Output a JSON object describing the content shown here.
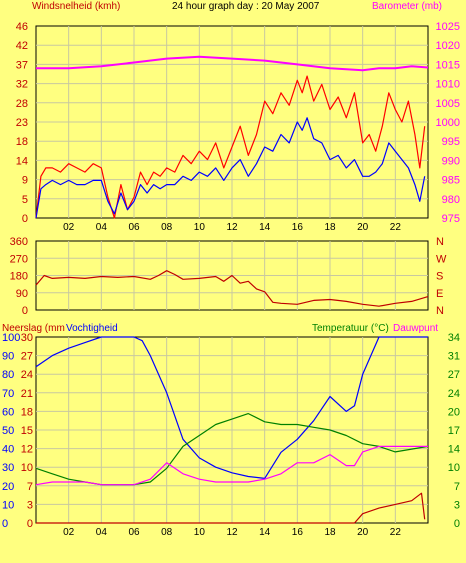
{
  "colors": {
    "background": "#ffff80",
    "wind_avg": "#0000ff",
    "wind_gust": "#ff0000",
    "barometer": "#ff00ff",
    "direction": "#c00000",
    "rain": "#c00000",
    "humidity": "#0000ff",
    "temperature": "#008000",
    "dewpoint": "#ff00ff",
    "grid": "#c8c8a0"
  },
  "header": {
    "left_label": "Windsnelheid (kmh)",
    "title": "24 hour graph day : 20 May 2007",
    "right_label": "Barometer (mb)"
  },
  "panel3": {
    "left_label": "Neerslag (mm",
    "left_label2": "Vochtigheid",
    "right_label": "Temperatuur (°C)",
    "right_label2": "Dauwpunt"
  },
  "x_ticks": [
    "02",
    "04",
    "06",
    "08",
    "10",
    "12",
    "14",
    "16",
    "18",
    "20",
    "22"
  ],
  "chart_data": [
    {
      "type": "line",
      "name": "wind_and_barometer",
      "x_unit": "hour",
      "xlim": [
        0,
        24
      ],
      "ylabel": "Windsnelheid (kmh)",
      "y2label": "Barometer (mb)",
      "ylim": [
        0,
        46
      ],
      "y_ticks": [
        "46",
        "42",
        "37",
        "32",
        "28",
        "23",
        "18",
        "14",
        "9",
        "5",
        "0"
      ],
      "y2lim": [
        975,
        1025
      ],
      "y2_ticks": [
        "1025",
        "1020",
        "1015",
        "1010",
        "1005",
        "1000",
        "995",
        "990",
        "985",
        "980",
        "975"
      ],
      "series": [
        {
          "key": "gust",
          "axis": "left",
          "color": "#ff0000",
          "x": [
            0,
            0.3,
            0.6,
            1,
            1.5,
            2,
            2.5,
            3,
            3.5,
            4,
            4.4,
            4.8,
            5.2,
            5.6,
            6,
            6.4,
            6.8,
            7.2,
            7.6,
            8,
            8.5,
            9,
            9.5,
            10,
            10.5,
            11,
            11.5,
            12,
            12.5,
            13,
            13.5,
            14,
            14.5,
            15,
            15.5,
            16,
            16.3,
            16.6,
            17,
            17.5,
            18,
            18.5,
            19,
            19.5,
            20,
            20.4,
            20.8,
            21.2,
            21.6,
            22,
            22.4,
            22.8,
            23.2,
            23.5,
            23.8
          ],
          "y": [
            0,
            10,
            12,
            12,
            11,
            13,
            12,
            11,
            13,
            12,
            5,
            0,
            8,
            2,
            5,
            11,
            8,
            11,
            10,
            12,
            11,
            15,
            13,
            16,
            14,
            18,
            12,
            17,
            22,
            15,
            20,
            28,
            25,
            30,
            27,
            33,
            30,
            34,
            28,
            32,
            26,
            29,
            24,
            30,
            18,
            20,
            16,
            22,
            30,
            26,
            23,
            28,
            20,
            12,
            22
          ]
        },
        {
          "key": "avg",
          "axis": "left",
          "color": "#0000ff",
          "x": [
            0,
            0.3,
            0.6,
            1,
            1.5,
            2,
            2.5,
            3,
            3.5,
            4,
            4.4,
            4.8,
            5.2,
            5.6,
            6,
            6.4,
            6.8,
            7.2,
            7.6,
            8,
            8.5,
            9,
            9.5,
            10,
            10.5,
            11,
            11.5,
            12,
            12.5,
            13,
            13.5,
            14,
            14.5,
            15,
            15.5,
            16,
            16.3,
            16.6,
            17,
            17.5,
            18,
            18.5,
            19,
            19.5,
            20,
            20.4,
            20.8,
            21.2,
            21.6,
            22,
            22.4,
            22.8,
            23.2,
            23.5,
            23.8
          ],
          "y": [
            0,
            7,
            8,
            9,
            8,
            9,
            8,
            8,
            9,
            9,
            4,
            1,
            6,
            2,
            4,
            8,
            6,
            8,
            7,
            8,
            8,
            10,
            9,
            11,
            10,
            12,
            9,
            12,
            14,
            10,
            13,
            17,
            16,
            20,
            18,
            23,
            21,
            24,
            19,
            18,
            14,
            15,
            12,
            14,
            10,
            10,
            11,
            13,
            18,
            16,
            14,
            12,
            8,
            4,
            10
          ]
        },
        {
          "key": "barometer",
          "axis": "right",
          "color": "#ff00ff",
          "x": [
            0,
            2,
            4,
            6,
            8,
            10,
            12,
            14,
            16,
            18,
            20,
            21,
            22,
            23,
            24
          ],
          "y": [
            1014,
            1014,
            1014.5,
            1015.5,
            1016.5,
            1017,
            1016.5,
            1016,
            1015,
            1014,
            1013.5,
            1014,
            1014,
            1014.5,
            1014.2
          ]
        }
      ]
    },
    {
      "type": "line",
      "name": "wind_direction",
      "xlim": [
        0,
        24
      ],
      "ylim": [
        0,
        360
      ],
      "y_ticks": [
        "360",
        "270",
        "180",
        "90",
        "0"
      ],
      "y2_ticks": [
        "N",
        "W",
        "S",
        "E",
        "N"
      ],
      "series": [
        {
          "key": "direction",
          "color": "#c00000",
          "x": [
            0,
            0.5,
            1,
            2,
            3,
            4,
            5,
            6,
            7,
            7.5,
            8,
            8.5,
            9,
            10,
            11,
            11.5,
            12,
            12.5,
            13,
            13.5,
            14,
            14.5,
            15,
            16,
            17,
            18,
            19,
            20,
            21,
            22,
            23,
            24
          ],
          "y": [
            130,
            180,
            165,
            170,
            165,
            175,
            170,
            175,
            160,
            180,
            205,
            185,
            160,
            165,
            175,
            150,
            180,
            140,
            150,
            110,
            95,
            40,
            35,
            30,
            50,
            55,
            45,
            30,
            20,
            35,
            45,
            70
          ]
        }
      ]
    },
    {
      "type": "line",
      "name": "rain_humidity_temperature",
      "xlim": [
        0,
        24
      ],
      "ylabel": "Neerslag (mm Vochtigheid",
      "y2label": "Temperatuur (°C) Dauwpunt",
      "ylim": [
        0,
        100
      ],
      "y_ticks": [
        "100",
        "90",
        "80",
        "70",
        "60",
        "50",
        "40",
        "30",
        "20",
        "10",
        "0"
      ],
      "y_ticks_left2": [
        "30",
        "27",
        "24",
        "21",
        "18",
        "15",
        "12",
        "10",
        "7",
        "3",
        "0"
      ],
      "y2lim": [
        0,
        34
      ],
      "y2_ticks": [
        "34",
        "31",
        "27",
        "24",
        "20",
        "17",
        "14",
        "10",
        "7",
        "3",
        "0"
      ],
      "series": [
        {
          "key": "humidity",
          "axis": "left",
          "color": "#0000ff",
          "x": [
            0,
            1,
            2,
            3,
            4,
            5,
            6,
            6.5,
            7,
            8,
            9,
            10,
            11,
            12,
            13,
            14,
            15,
            16,
            17,
            18,
            19,
            19.5,
            20,
            21,
            22,
            23,
            24
          ],
          "y": [
            84,
            90,
            94,
            97,
            100,
            100,
            100,
            98,
            90,
            70,
            45,
            35,
            30,
            27,
            25,
            24,
            38,
            45,
            55,
            68,
            60,
            63,
            80,
            100,
            100,
            100,
            100
          ]
        },
        {
          "key": "temperature",
          "axis": "right",
          "color": "#008000",
          "x": [
            0,
            1,
            2,
            3,
            4,
            5,
            6,
            7,
            8,
            9,
            10,
            11,
            12,
            13,
            14,
            15,
            16,
            17,
            18,
            19,
            20,
            21,
            22,
            23,
            24
          ],
          "y": [
            10,
            9,
            8,
            7.5,
            7,
            7,
            7,
            7.5,
            10,
            14,
            16,
            18,
            19,
            20,
            18.5,
            18,
            18,
            17.5,
            17,
            16,
            14.5,
            14,
            13,
            13.5,
            14
          ]
        },
        {
          "key": "dewpoint",
          "axis": "right",
          "color": "#ff00ff",
          "x": [
            0,
            1,
            2,
            3,
            4,
            5,
            6,
            7,
            8,
            9,
            10,
            11,
            12,
            13,
            14,
            15,
            16,
            17,
            18,
            19,
            19.5,
            20,
            21,
            22,
            23,
            24
          ],
          "y": [
            7,
            7.5,
            7.5,
            7.5,
            7,
            7,
            7,
            8,
            11,
            9,
            8,
            7.5,
            7.5,
            7.5,
            8,
            9,
            11,
            11,
            12.5,
            10.5,
            10.5,
            13,
            14,
            14,
            14,
            14
          ]
        },
        {
          "key": "rain",
          "axis": "left",
          "color": "#c00000",
          "x": [
            0,
            19.5,
            20,
            21,
            22,
            23,
            23.6,
            23.8
          ],
          "y": [
            0,
            0,
            5,
            8,
            10,
            12,
            16,
            2
          ]
        }
      ]
    }
  ]
}
